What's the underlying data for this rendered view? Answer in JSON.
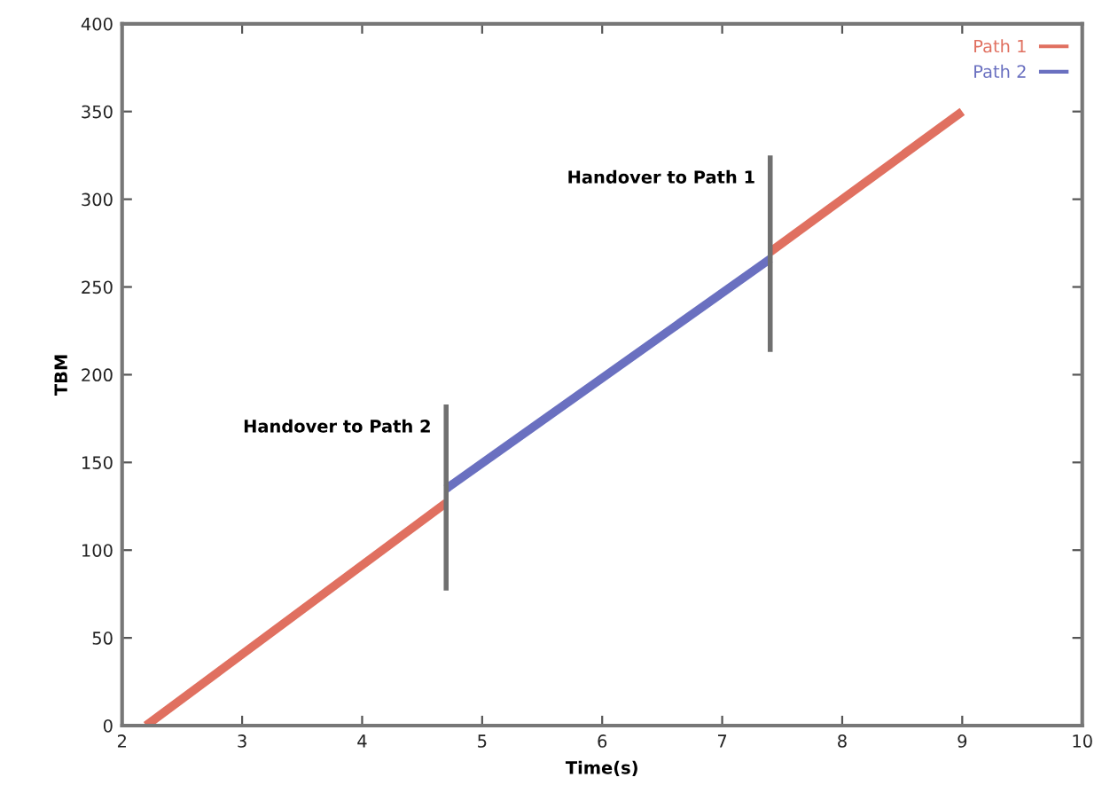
{
  "chart_data": {
    "type": "line",
    "xlabel": "Time(s)",
    "ylabel": "TBM",
    "xlim": [
      2,
      10
    ],
    "xticks": [
      2,
      3,
      4,
      5,
      6,
      7,
      8,
      9,
      10
    ],
    "ylim": [
      0,
      400
    ],
    "yticks": [
      0,
      50,
      100,
      150,
      200,
      250,
      300,
      350,
      400
    ],
    "grid": false,
    "legend": "top right",
    "series": [
      {
        "name": "Path 1",
        "color": "#e07060",
        "x": [
          2.2,
          4.7
        ],
        "values": [
          0,
          127
        ]
      },
      {
        "name": "Path 2",
        "color": "#6a70c0",
        "x": [
          4.7,
          7.4
        ],
        "values": [
          135,
          266
        ]
      },
      {
        "color": "#e07060",
        "x": [
          7.4,
          9.0
        ],
        "values": [
          270,
          350
        ]
      },
      {
        "color": "#707070",
        "x": [
          4.7,
          4.7
        ],
        "values": [
          77,
          183
        ]
      },
      {
        "color": "#707070",
        "x": [
          7.4,
          7.4
        ],
        "values": [
          213,
          325
        ]
      }
    ],
    "annotations": [
      {
        "text": "Handover to Path 2",
        "x": 4.7,
        "y": 183
      },
      {
        "text": "Handover to Path 1",
        "x": 7.4,
        "y": 325
      }
    ]
  }
}
